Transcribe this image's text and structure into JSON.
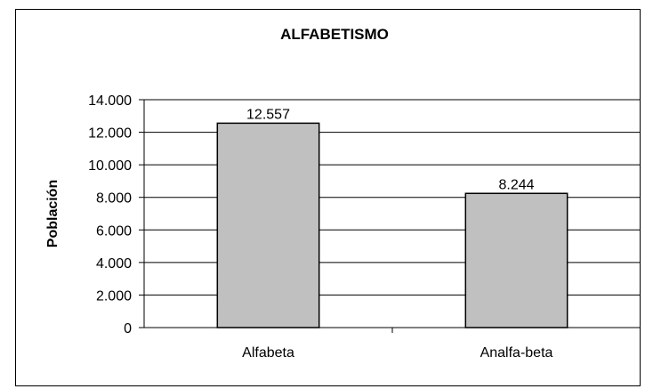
{
  "chart_data": {
    "type": "bar",
    "title": "ALFABETISMO",
    "xlabel": "",
    "ylabel": "Población",
    "categories": [
      "Alfabeta",
      "Analfa-beta"
    ],
    "values": [
      12557,
      8244
    ],
    "value_labels": [
      "12.557",
      "8.244"
    ],
    "ylim": [
      0,
      14000
    ],
    "yticks": [
      0,
      2000,
      4000,
      6000,
      8000,
      10000,
      12000,
      14000
    ],
    "ytick_labels": [
      "0",
      "2.000",
      "4.000",
      "6.000",
      "8.000",
      "10.000",
      "12.000",
      "14.000"
    ],
    "grid": true,
    "legend": "none",
    "bar_color": "#c0c0c0",
    "bar_edge_color": "#000000"
  }
}
